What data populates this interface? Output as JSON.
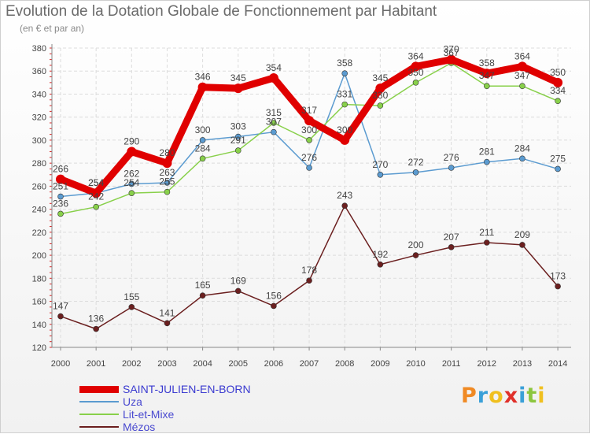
{
  "header": {
    "title": "Evolution de la Dotation Globale de Fonctionnement par Habitant",
    "subtitle": "(en € et par an)"
  },
  "logo": {
    "text": "Proxiti",
    "colors": [
      "#f08a24",
      "#3aa0d8",
      "#f0c020",
      "#e0302a",
      "#3aa0d8",
      "#8cc63f",
      "#f0c020"
    ]
  },
  "chart_data": {
    "type": "line",
    "categories": [
      "2000",
      "2001",
      "2002",
      "2003",
      "2004",
      "2005",
      "2006",
      "2007",
      "2008",
      "2009",
      "2010",
      "2011",
      "2012",
      "2013",
      "2014"
    ],
    "ylim": [
      120,
      380
    ],
    "yticks": [
      120,
      140,
      160,
      180,
      200,
      220,
      240,
      260,
      280,
      300,
      320,
      340,
      360,
      380
    ],
    "grid": true,
    "legend_position": "bottom-left",
    "series": [
      {
        "name": "SAINT-JULIEN-EN-BORN",
        "color": "#e00000",
        "emphasis": true,
        "values": [
          266,
          254,
          290,
          280,
          346,
          345,
          354,
          317,
          300,
          345,
          364,
          370,
          358,
          364,
          350
        ]
      },
      {
        "name": "Uza",
        "color": "#5b9bd0",
        "values": [
          251,
          254,
          262,
          263,
          300,
          303,
          307,
          276,
          358,
          270,
          272,
          276,
          281,
          284,
          275
        ]
      },
      {
        "name": "Lit-et-Mixe",
        "color": "#88d04a",
        "values": [
          236,
          242,
          254,
          255,
          284,
          291,
          315,
          300,
          331,
          330,
          350,
          367,
          347,
          347,
          334
        ]
      },
      {
        "name": "Mézos",
        "color": "#6b1f1f",
        "values": [
          147,
          136,
          155,
          141,
          165,
          169,
          156,
          178,
          243,
          192,
          200,
          207,
          211,
          209,
          173
        ]
      }
    ]
  }
}
